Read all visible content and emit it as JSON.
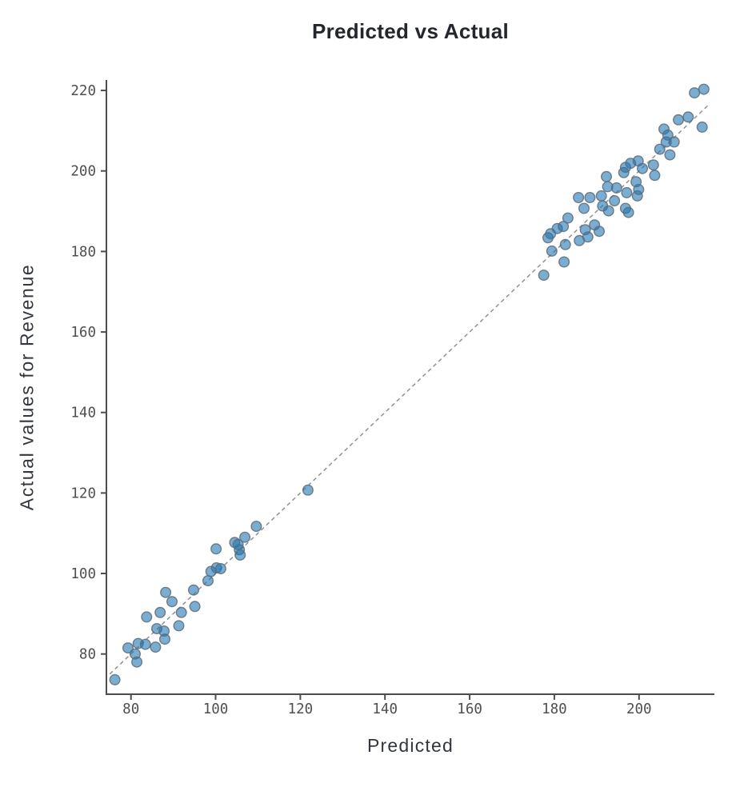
{
  "chart_data": {
    "type": "scatter",
    "title": "Predicted vs Actual",
    "xlabel": "Predicted",
    "ylabel": "Actual values for Revenue",
    "xlim": [
      74.2,
      217.8
    ],
    "ylim": [
      70,
      222.6
    ],
    "x_ticks": [
      80,
      100,
      120,
      140,
      160,
      180,
      200
    ],
    "y_ticks": [
      80,
      100,
      120,
      140,
      160,
      180,
      200,
      220
    ],
    "grid": false,
    "legend": "none",
    "identity_line": {
      "style": "dashed",
      "from": 75,
      "to": 216.5,
      "color": "#919191"
    },
    "style": {
      "point_fill": "#1f77b4",
      "point_fill_opacity": 0.6,
      "point_edge": "#5f6b76",
      "point_edge_opacity": 0.85,
      "point_radius": 6.3,
      "axis_color": "#4d4d4d",
      "tick_label_color": "#4f4f4f",
      "label_color": "#33373d",
      "title_color": "#23262c"
    },
    "points": [
      [
        76.2,
        73.6
      ],
      [
        79.3,
        81.5
      ],
      [
        81.0,
        80.0
      ],
      [
        81.4,
        78.0
      ],
      [
        81.7,
        82.6
      ],
      [
        83.4,
        82.4
      ],
      [
        83.7,
        89.2
      ],
      [
        85.8,
        81.7
      ],
      [
        86.1,
        86.3
      ],
      [
        86.9,
        90.3
      ],
      [
        87.8,
        85.7
      ],
      [
        88.0,
        83.7
      ],
      [
        88.2,
        95.3
      ],
      [
        89.7,
        93.0
      ],
      [
        91.3,
        87.0
      ],
      [
        91.9,
        90.3
      ],
      [
        94.8,
        95.9
      ],
      [
        95.1,
        91.8
      ],
      [
        98.2,
        98.2
      ],
      [
        98.9,
        100.5
      ],
      [
        100.1,
        106.1
      ],
      [
        100.2,
        101.4
      ],
      [
        101.2,
        101.2
      ],
      [
        104.5,
        107.7
      ],
      [
        105.3,
        107.2
      ],
      [
        105.6,
        105.9
      ],
      [
        105.8,
        104.6
      ],
      [
        106.9,
        109.0
      ],
      [
        109.6,
        111.7
      ],
      [
        121.8,
        120.7
      ],
      [
        177.5,
        174.1
      ],
      [
        178.5,
        183.4
      ],
      [
        179.1,
        184.4
      ],
      [
        179.4,
        180.1
      ],
      [
        180.7,
        185.7
      ],
      [
        182.1,
        186.2
      ],
      [
        182.3,
        177.4
      ],
      [
        182.6,
        181.7
      ],
      [
        183.2,
        188.3
      ],
      [
        185.7,
        193.4
      ],
      [
        185.9,
        182.7
      ],
      [
        187.0,
        190.7
      ],
      [
        187.3,
        185.4
      ],
      [
        187.9,
        183.6
      ],
      [
        188.4,
        193.4
      ],
      [
        189.5,
        186.6
      ],
      [
        190.6,
        185.0
      ],
      [
        191.1,
        193.8
      ],
      [
        191.4,
        191.3
      ],
      [
        192.3,
        198.6
      ],
      [
        192.6,
        196.1
      ],
      [
        192.8,
        190.1
      ],
      [
        194.2,
        192.6
      ],
      [
        194.7,
        195.8
      ],
      [
        196.4,
        199.6
      ],
      [
        196.8,
        200.9
      ],
      [
        196.8,
        190.7
      ],
      [
        197.1,
        194.6
      ],
      [
        197.5,
        189.7
      ],
      [
        198.0,
        201.9
      ],
      [
        199.3,
        197.3
      ],
      [
        199.6,
        193.8
      ],
      [
        199.8,
        202.5
      ],
      [
        199.9,
        195.4
      ],
      [
        200.8,
        200.6
      ],
      [
        203.4,
        201.5
      ],
      [
        203.7,
        198.9
      ],
      [
        204.9,
        205.4
      ],
      [
        205.9,
        210.4
      ],
      [
        206.4,
        207.2
      ],
      [
        206.8,
        208.9
      ],
      [
        207.3,
        204.0
      ],
      [
        208.3,
        207.2
      ],
      [
        209.3,
        212.7
      ],
      [
        211.6,
        213.4
      ],
      [
        213.1,
        219.4
      ],
      [
        214.9,
        210.9
      ],
      [
        215.3,
        220.3
      ]
    ]
  }
}
